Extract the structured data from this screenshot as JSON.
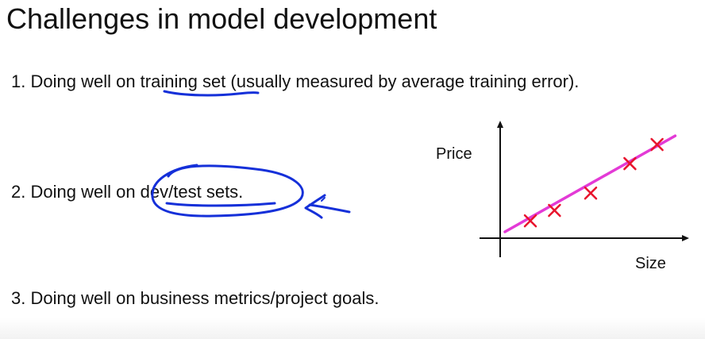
{
  "slide": {
    "title": "Challenges in model development",
    "bullets": [
      {
        "number": "1.",
        "prefix": "Doing well on ",
        "highlight": "training set",
        "suffix": " (usually measured by average training error)."
      },
      {
        "number": "2.",
        "prefix": "Doing well on ",
        "highlight": "dev/test sets.",
        "suffix": ""
      },
      {
        "number": "3.",
        "text": "Doing well on business metrics/project goals."
      }
    ]
  },
  "chart_data": {
    "type": "scatter",
    "xlabel": "Size",
    "ylabel": "Price",
    "points": [
      {
        "x": 1.0,
        "y": 1.0
      },
      {
        "x": 1.8,
        "y": 1.6
      },
      {
        "x": 3.0,
        "y": 2.6
      },
      {
        "x": 4.3,
        "y": 4.3
      },
      {
        "x": 5.2,
        "y": 5.4
      }
    ],
    "fit_line": {
      "x": [
        0.0,
        5.8
      ],
      "y": [
        0.0,
        5.9
      ]
    },
    "xlim": [
      0,
      6
    ],
    "ylim": [
      0,
      6.5
    ],
    "grid": false,
    "colors": {
      "axis": "#111111",
      "points": "#e8132c",
      "fit_line": "#e33ad6"
    }
  },
  "annotations": {
    "ink_color": "#1530d9"
  }
}
